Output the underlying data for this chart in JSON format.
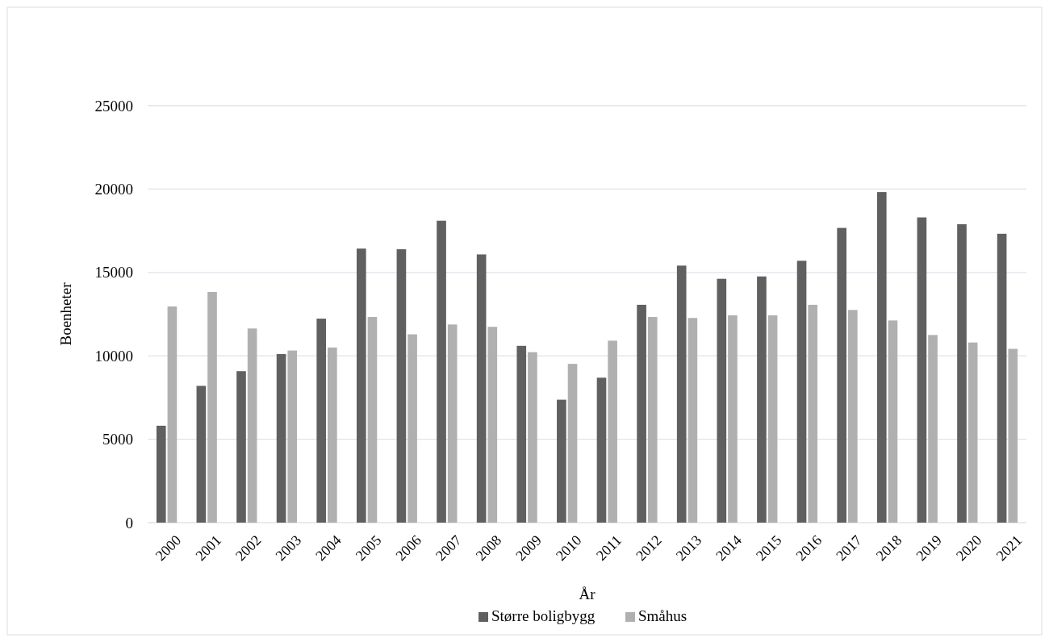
{
  "chart_data": {
    "type": "bar",
    "xlabel": "År",
    "ylabel": "Boenheter",
    "categories": [
      "2000",
      "2001",
      "2002",
      "2003",
      "2004",
      "2005",
      "2006",
      "2007",
      "2008",
      "2009",
      "2010",
      "2011",
      "2012",
      "2013",
      "2014",
      "2015",
      "2016",
      "2017",
      "2018",
      "2019",
      "2020",
      "2021"
    ],
    "series": [
      {
        "name": "Større boligbygg",
        "color": "#606060",
        "values": [
          5810,
          8200,
          9080,
          10110,
          12230,
          16430,
          16390,
          18100,
          16080,
          10600,
          7370,
          8690,
          13060,
          15410,
          14620,
          14760,
          15700,
          17670,
          19820,
          18300,
          17890,
          17320
        ]
      },
      {
        "name": "Småhus",
        "color": "#b0b0b0",
        "values": [
          12960,
          13830,
          11640,
          10320,
          10500,
          12330,
          11290,
          11880,
          11740,
          10220,
          9520,
          10910,
          12330,
          12270,
          12430,
          12430,
          13060,
          12750,
          12120,
          11250,
          10800,
          10420
        ]
      }
    ],
    "ylim": [
      0,
      25000
    ],
    "yticks": [
      0,
      5000,
      10000,
      15000,
      20000,
      25000
    ],
    "grid": "y",
    "legend": "bottom"
  }
}
